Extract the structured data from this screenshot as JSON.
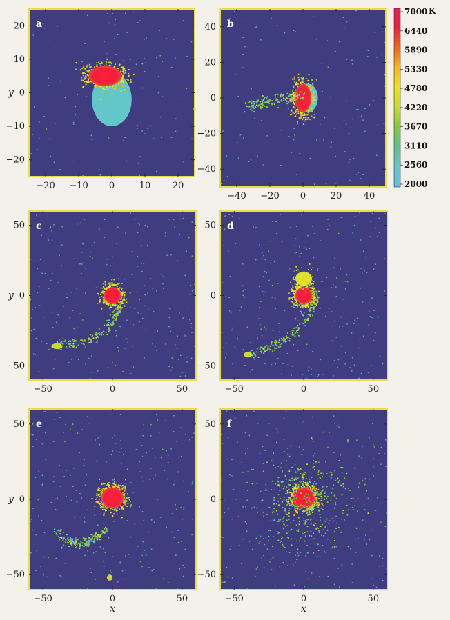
{
  "colors": {
    "background_panel": "#3f3c80",
    "frame": "#e9dc48",
    "tick_color": "#222222",
    "temperature_scale": [
      "#5fbfe9",
      "#63c6c9",
      "#5fbf8a",
      "#7fcf3a",
      "#c9dc2c",
      "#f1e21f",
      "#f8b81c",
      "#f2641c",
      "#ee1f3c",
      "#ec1a5c"
    ]
  },
  "colorbar": {
    "labels": [
      "7000",
      "6440",
      "5890",
      "5330",
      "4780",
      "4220",
      "3670",
      "3110",
      "2560",
      "2000"
    ],
    "unit": "K"
  },
  "chart_data": [
    {
      "panel": "a",
      "type": "scatter",
      "xlim": [
        -25,
        25
      ],
      "ylim": [
        -25,
        25
      ],
      "xticks": [
        "−20",
        "−10",
        "0",
        "10",
        "20"
      ],
      "yticks": [
        "20",
        "10",
        "0",
        "−10",
        "−20"
      ],
      "ylabel": "y",
      "xlabel": "",
      "features": [
        {
          "kind": "disk",
          "cx": 0,
          "cy": -2,
          "rx": 6,
          "ry": 8,
          "temperature": 2400
        },
        {
          "kind": "hot_wrap",
          "cx": -2,
          "cy": 5,
          "rx": 5,
          "ry": 3,
          "temperature": 6800
        }
      ]
    },
    {
      "panel": "b",
      "type": "scatter",
      "xlim": [
        -50,
        50
      ],
      "ylim": [
        -50,
        50
      ],
      "xticks": [
        "−40",
        "−20",
        "0",
        "20",
        "40"
      ],
      "yticks": [
        "40",
        "20",
        "0",
        "−20",
        "−40"
      ],
      "ylabel": "",
      "xlabel": "",
      "features": [
        {
          "kind": "disk",
          "cx": 3,
          "cy": 0,
          "rx": 6,
          "ry": 8,
          "temperature": 2400
        },
        {
          "kind": "hot_core",
          "cx": 0,
          "cy": 0,
          "rx": 5,
          "ry": 8,
          "temperature": 6800
        },
        {
          "kind": "stream",
          "x0": -35,
          "y0": -5,
          "x1": 0,
          "y1": 2,
          "temperature": 4500
        }
      ]
    },
    {
      "panel": "c",
      "type": "scatter",
      "xlim": [
        -60,
        60
      ],
      "ylim": [
        -60,
        60
      ],
      "xticks": [
        "−50",
        "0",
        "50"
      ],
      "yticks": [
        "50",
        "0",
        "−50"
      ],
      "ylabel": "y",
      "xlabel": "",
      "features": [
        {
          "kind": "hot_core",
          "cx": 0,
          "cy": 0,
          "rx": 6,
          "ry": 6,
          "temperature": 6800
        },
        {
          "kind": "tail",
          "x0": 5,
          "y0": -8,
          "x1": -40,
          "y1": -36,
          "temperature": 4000
        },
        {
          "kind": "clump",
          "cx": -40,
          "cy": -36,
          "rx": 4,
          "ry": 2,
          "temperature": 4300
        }
      ]
    },
    {
      "panel": "d",
      "type": "scatter",
      "xlim": [
        -60,
        60
      ],
      "ylim": [
        -60,
        60
      ],
      "xticks": [
        "−50",
        "0",
        "50"
      ],
      "yticks": [
        "50",
        "0",
        "−50"
      ],
      "ylabel": "",
      "xlabel": "",
      "features": [
        {
          "kind": "hot_core",
          "cx": 0,
          "cy": 0,
          "rx": 6,
          "ry": 6,
          "temperature": 6800
        },
        {
          "kind": "warm_cap",
          "cx": 0,
          "cy": 12,
          "rx": 6,
          "ry": 5,
          "temperature": 5000
        },
        {
          "kind": "tail",
          "x0": 10,
          "y0": 0,
          "x1": -40,
          "y1": -42,
          "temperature": 4000
        },
        {
          "kind": "clump",
          "cx": -40,
          "cy": -42,
          "rx": 3,
          "ry": 2,
          "temperature": 4300
        }
      ]
    },
    {
      "panel": "e",
      "type": "scatter",
      "xlim": [
        -60,
        60
      ],
      "ylim": [
        -60,
        60
      ],
      "xticks": [
        "−50",
        "0",
        "50"
      ],
      "yticks": [
        "50",
        "0",
        "−50"
      ],
      "ylabel": "y",
      "xlabel": "x",
      "features": [
        {
          "kind": "hot_core",
          "cx": 0,
          "cy": 1,
          "rx": 8,
          "ry": 7,
          "temperature": 6800
        },
        {
          "kind": "arc",
          "x0": -5,
          "y0": -20,
          "x1": -40,
          "y1": -20,
          "temperature": 4000
        },
        {
          "kind": "clump",
          "cx": -2,
          "cy": -52,
          "rx": 2,
          "ry": 2,
          "temperature": 4600
        }
      ]
    },
    {
      "panel": "f",
      "type": "scatter",
      "xlim": [
        -60,
        60
      ],
      "ylim": [
        -60,
        60
      ],
      "xticks": [
        "−50",
        "0",
        "50"
      ],
      "yticks": [
        "50",
        "0",
        "−50"
      ],
      "ylabel": "",
      "xlabel": "x",
      "features": [
        {
          "kind": "hot_core",
          "cx": 0,
          "cy": 1,
          "rx": 8,
          "ry": 7,
          "temperature": 6800
        },
        {
          "kind": "halo",
          "cx": 0,
          "cy": 0,
          "rx": 30,
          "ry": 30,
          "temperature": 4000
        }
      ]
    }
  ]
}
